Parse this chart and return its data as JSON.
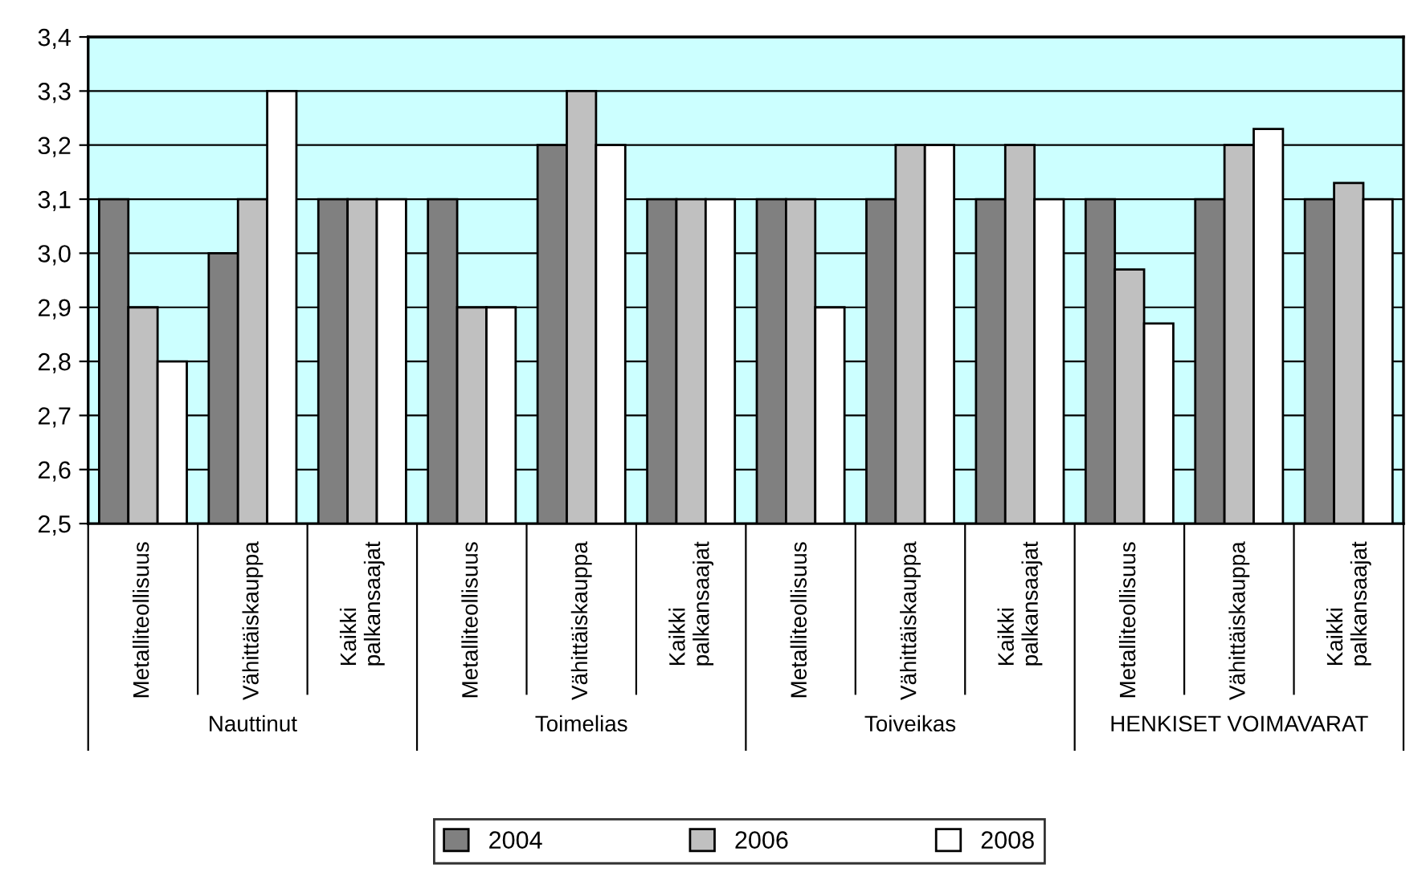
{
  "chart_data": {
    "type": "bar",
    "categories": [
      "Metalliteollisuus",
      "Vähittäiskauppa",
      "Kaikki\npalkansaajat",
      "Metalliteollisuus",
      "Vähittäiskauppa",
      "Kaikki\npalkansaajat",
      "Metalliteollisuus",
      "Vähittäiskauppa",
      "Kaikki\npalkansaajat",
      "Metalliteollisuus",
      "Vähittäiskauppa",
      "Kaikki\npalkansaajat"
    ],
    "annotations": [
      "Nauttinut",
      "Toimelias",
      "Toiveikas",
      "HENKISET VOIMAVARAT"
    ],
    "series": [
      {
        "name": "2004",
        "color": "#808080",
        "values": [
          3.1,
          3.0,
          3.1,
          3.1,
          3.2,
          3.1,
          3.1,
          3.1,
          3.1,
          3.1,
          3.1,
          3.1
        ]
      },
      {
        "name": "2006",
        "color": "#c0c0c0",
        "values": [
          2.9,
          3.1,
          3.1,
          2.9,
          3.3,
          3.1,
          3.1,
          3.2,
          3.2,
          2.97,
          3.2,
          3.13
        ]
      },
      {
        "name": "2008",
        "color": "#ffffff",
        "values": [
          2.8,
          3.3,
          3.1,
          2.9,
          3.2,
          3.1,
          2.9,
          3.2,
          3.1,
          2.87,
          3.23,
          3.1
        ]
      }
    ],
    "ylim": [
      2.5,
      3.4
    ],
    "yticks": [
      {
        "value": 2.5,
        "label": "2,5"
      },
      {
        "value": 2.6,
        "label": "2,6"
      },
      {
        "value": 2.7,
        "label": "2,7"
      },
      {
        "value": 2.8,
        "label": "2,8"
      },
      {
        "value": 2.9,
        "label": "2,9"
      },
      {
        "value": 3.0,
        "label": "3,0"
      },
      {
        "value": 3.1,
        "label": "3,1"
      },
      {
        "value": 3.2,
        "label": "3,2"
      },
      {
        "value": 3.3,
        "label": "3,3"
      },
      {
        "value": 3.4,
        "label": "3,4"
      }
    ],
    "grid": "y",
    "legend": "bottom"
  }
}
